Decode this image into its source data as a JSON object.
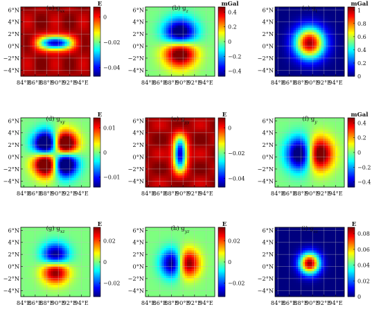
{
  "figure": {
    "colormap": [
      "#00007f",
      "#0000ff",
      "#007fff",
      "#00ffff",
      "#7fff7f",
      "#ffff00",
      "#ff7f00",
      "#ff0000",
      "#7f0000"
    ],
    "lon_ticks": [
      "84°E",
      "86°E",
      "88°E",
      "90°E",
      "92°E",
      "94°E"
    ],
    "lat_ticks": [
      "6°N",
      "4°N",
      "2°N",
      "0°N",
      "−2°N",
      "−4°N"
    ]
  },
  "chart_data": [
    {
      "type": "heatmap",
      "title": "(a) g_xx",
      "title_main": "(a) g",
      "title_sub": "xx",
      "unit": "E",
      "colorbar_ticks": [
        "0",
        "−0.02",
        "−0.04"
      ],
      "colorbar_tick_values": [
        0,
        -0.02,
        -0.04
      ],
      "clim": [
        -0.047,
        0.008
      ],
      "pattern": "gxx",
      "xlim": [
        83.5,
        95.5
      ],
      "ylim": [
        -5,
        6.5
      ]
    },
    {
      "type": "heatmap",
      "title": "(b) g_z",
      "title_main": "(b) g",
      "title_sub": "z",
      "unit": "mGal",
      "colorbar_ticks": [
        "0.4",
        "0.2",
        "0",
        "−0.2",
        "−0.4"
      ],
      "colorbar_tick_values": [
        0.4,
        0.2,
        0,
        -0.2,
        -0.4
      ],
      "clim": [
        -0.47,
        0.47
      ],
      "pattern": "gz",
      "xlim": [
        83.5,
        95.5
      ],
      "ylim": [
        -5,
        6.5
      ]
    },
    {
      "type": "heatmap",
      "title": "(c) g_t",
      "title_main": "(c) g",
      "title_sub": "t",
      "unit": "mGal",
      "colorbar_ticks": [
        "1",
        "0.8",
        "0.6",
        "0.4",
        "0.2",
        "0"
      ],
      "colorbar_tick_values": [
        1,
        0.8,
        0.6,
        0.4,
        0.2,
        0
      ],
      "clim": [
        0,
        1.05
      ],
      "pattern": "gt",
      "xlim": [
        83.5,
        95.5
      ],
      "ylim": [
        -5,
        6.5
      ]
    },
    {
      "type": "heatmap",
      "title": "(d) g_xy",
      "title_main": "(d) g",
      "title_sub": "xy",
      "unit": "E",
      "colorbar_ticks": [
        "0.01",
        "0",
        "−0.01"
      ],
      "colorbar_tick_values": [
        0.01,
        0,
        -0.01
      ],
      "clim": [
        -0.014,
        0.014
      ],
      "pattern": "gxy",
      "xlim": [
        83.5,
        95.5
      ],
      "ylim": [
        -5,
        6.5
      ]
    },
    {
      "type": "heatmap",
      "title": "(e) g_yy",
      "title_main": "(e) g",
      "title_sub": "yy",
      "unit": "E",
      "colorbar_ticks": [
        "0",
        "−0.02",
        "−0.04"
      ],
      "colorbar_tick_values": [
        0,
        -0.02,
        -0.04
      ],
      "clim": [
        -0.047,
        0.008
      ],
      "pattern": "gyy",
      "xlim": [
        83.5,
        95.5
      ],
      "ylim": [
        -5,
        6.5
      ]
    },
    {
      "type": "heatmap",
      "title": "(f) g_y",
      "title_main": "(f) g",
      "title_sub": "y",
      "unit": "mGal",
      "colorbar_ticks": [
        "0.4",
        "0.2",
        "0",
        "−0.2",
        "−0.4"
      ],
      "colorbar_tick_values": [
        0.4,
        0.2,
        0,
        -0.2,
        -0.4
      ],
      "clim": [
        -0.47,
        0.47
      ],
      "pattern": "gy",
      "xlim": [
        83.5,
        95.5
      ],
      "ylim": [
        -5,
        6.5
      ]
    },
    {
      "type": "heatmap",
      "title": "(g) g_xz",
      "title_main": "(g) g",
      "title_sub": "xz",
      "unit": "E",
      "colorbar_ticks": [
        "0.02",
        "0",
        "−0.02"
      ],
      "colorbar_tick_values": [
        0.02,
        0,
        -0.02
      ],
      "clim": [
        -0.033,
        0.033
      ],
      "pattern": "gxz",
      "xlim": [
        83.5,
        95.5
      ],
      "ylim": [
        -5,
        6.5
      ]
    },
    {
      "type": "heatmap",
      "title": "(h) g_yz",
      "title_main": "(h) g",
      "title_sub": "yz",
      "unit": "E",
      "colorbar_ticks": [
        "0.02",
        "0",
        "−0.02"
      ],
      "colorbar_tick_values": [
        0.02,
        0,
        -0.02
      ],
      "clim": [
        -0.033,
        0.033
      ],
      "pattern": "gyz",
      "xlim": [
        83.5,
        95.5
      ],
      "ylim": [
        -5,
        6.5
      ]
    },
    {
      "type": "heatmap",
      "title": "(i) g_zz",
      "title_main": "(i) g",
      "title_sub": "zz",
      "unit": "E",
      "colorbar_ticks": [
        "0.08",
        "0.06",
        "0.04",
        "0.02",
        "0"
      ],
      "colorbar_tick_values": [
        0.08,
        0.06,
        0.04,
        0.02,
        0
      ],
      "clim": [
        0,
        0.088
      ],
      "pattern": "gzz",
      "xlim": [
        83.5,
        95.5
      ],
      "ylim": [
        -5,
        6.5
      ]
    }
  ]
}
